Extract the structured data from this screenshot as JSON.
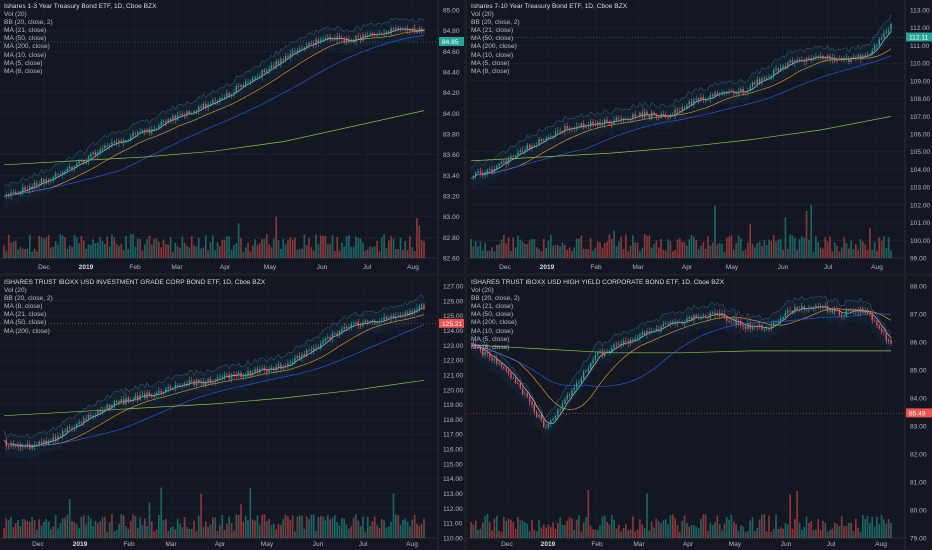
{
  "colors": {
    "background": "#131722",
    "grid": "#1f2430",
    "up": "#26a69a",
    "down": "#ef5350",
    "ma_fast": "#e0e3eb",
    "ma_21": "#f5a623",
    "ma_50": "#2962ff",
    "ma_200": "#8bc34a",
    "bb": "#3c6e8a",
    "last_green": "#26a69a",
    "last_red": "#ef5350"
  },
  "panels": [
    {
      "title": "Ishares 1-3 Year Treasury Bond ETF, 1D, Cboe BZX",
      "indicators": [
        "Vol (20)",
        "BB (20, close, 2)",
        "MA (21, close)",
        "MA (50, close)",
        "MA (200, close)",
        "MA (10, close)",
        "MA (5, close)",
        "MA (8, close)"
      ],
      "y_ticks": [
        "85.00",
        "84.80",
        "84.60",
        "84.40",
        "84.20",
        "84.00",
        "83.80",
        "83.60",
        "83.40",
        "83.20",
        "83.00",
        "82.80",
        "82.60"
      ],
      "x_ticks": [
        "Dec",
        "2019",
        "Feb",
        "Mar",
        "Apr",
        "May",
        "Jun",
        "Jul",
        "Aug"
      ],
      "last_price": "84.85",
      "last_color": "green"
    },
    {
      "title": "Ishares 7-10 Year Treasury Bond ETF, 1D, Cboe BZX",
      "indicators": [
        "Vol (20)",
        "BB (20, close, 2)",
        "MA (21, close)",
        "MA (50, close)",
        "MA (200, close)",
        "MA (10, close)",
        "MA (5, close)",
        "MA (8, close)"
      ],
      "y_ticks": [
        "113.00",
        "112.00",
        "111.00",
        "110.00",
        "109.00",
        "108.00",
        "107.00",
        "106.00",
        "105.00",
        "104.00",
        "103.00",
        "102.00",
        "101.00",
        "100.00",
        "99.00"
      ],
      "x_ticks": [
        "Dec",
        "2019",
        "Feb",
        "Mar",
        "Apr",
        "May",
        "Jun",
        "Jul",
        "Aug"
      ],
      "last_price": "112.11",
      "last_color": "green"
    },
    {
      "title": "ISHARES TRUST IBOXX USD INVESTMENT GRADE CORP BOND ETF, 1D, Cboe BZX",
      "indicators": [
        "Vol (20)",
        "BB (20, close, 2)",
        "MA (8, close)",
        "MA (21, close)",
        "MA (50, close)",
        "MA (200, close)"
      ],
      "y_ticks": [
        "127.00",
        "126.00",
        "125.00",
        "124.00",
        "123.00",
        "122.00",
        "121.00",
        "120.00",
        "119.00",
        "118.00",
        "117.00",
        "116.00",
        "115.00",
        "114.00",
        "113.00",
        "112.00",
        "111.00",
        "110.00"
      ],
      "x_ticks": [
        "Dec",
        "2019",
        "Feb",
        "Mar",
        "Apr",
        "May",
        "Jun",
        "Jul",
        "Aug"
      ],
      "last_price": "125.21",
      "last_color": "red"
    },
    {
      "title": "ISHARES TRUST IBOXX USD HIGH YIELD CORPORATE BOND ETF, 1D, Cboe BZX",
      "indicators": [
        "Vol (20)",
        "BB (20, close, 2)",
        "MA (21, close)",
        "MA (50, close)",
        "MA (200, close)",
        "MA (10, close)",
        "MA (5, close)",
        "MA (8, close)"
      ],
      "y_ticks": [
        "88.00",
        "87.00",
        "86.00",
        "85.00",
        "84.00",
        "83.00",
        "82.00",
        "81.00",
        "80.00",
        "79.00"
      ],
      "x_ticks": [
        "Dec",
        "2019",
        "Feb",
        "Mar",
        "Apr",
        "May",
        "Jun",
        "Jul",
        "Aug"
      ],
      "last_price": "85.49",
      "last_color": "red"
    }
  ]
}
